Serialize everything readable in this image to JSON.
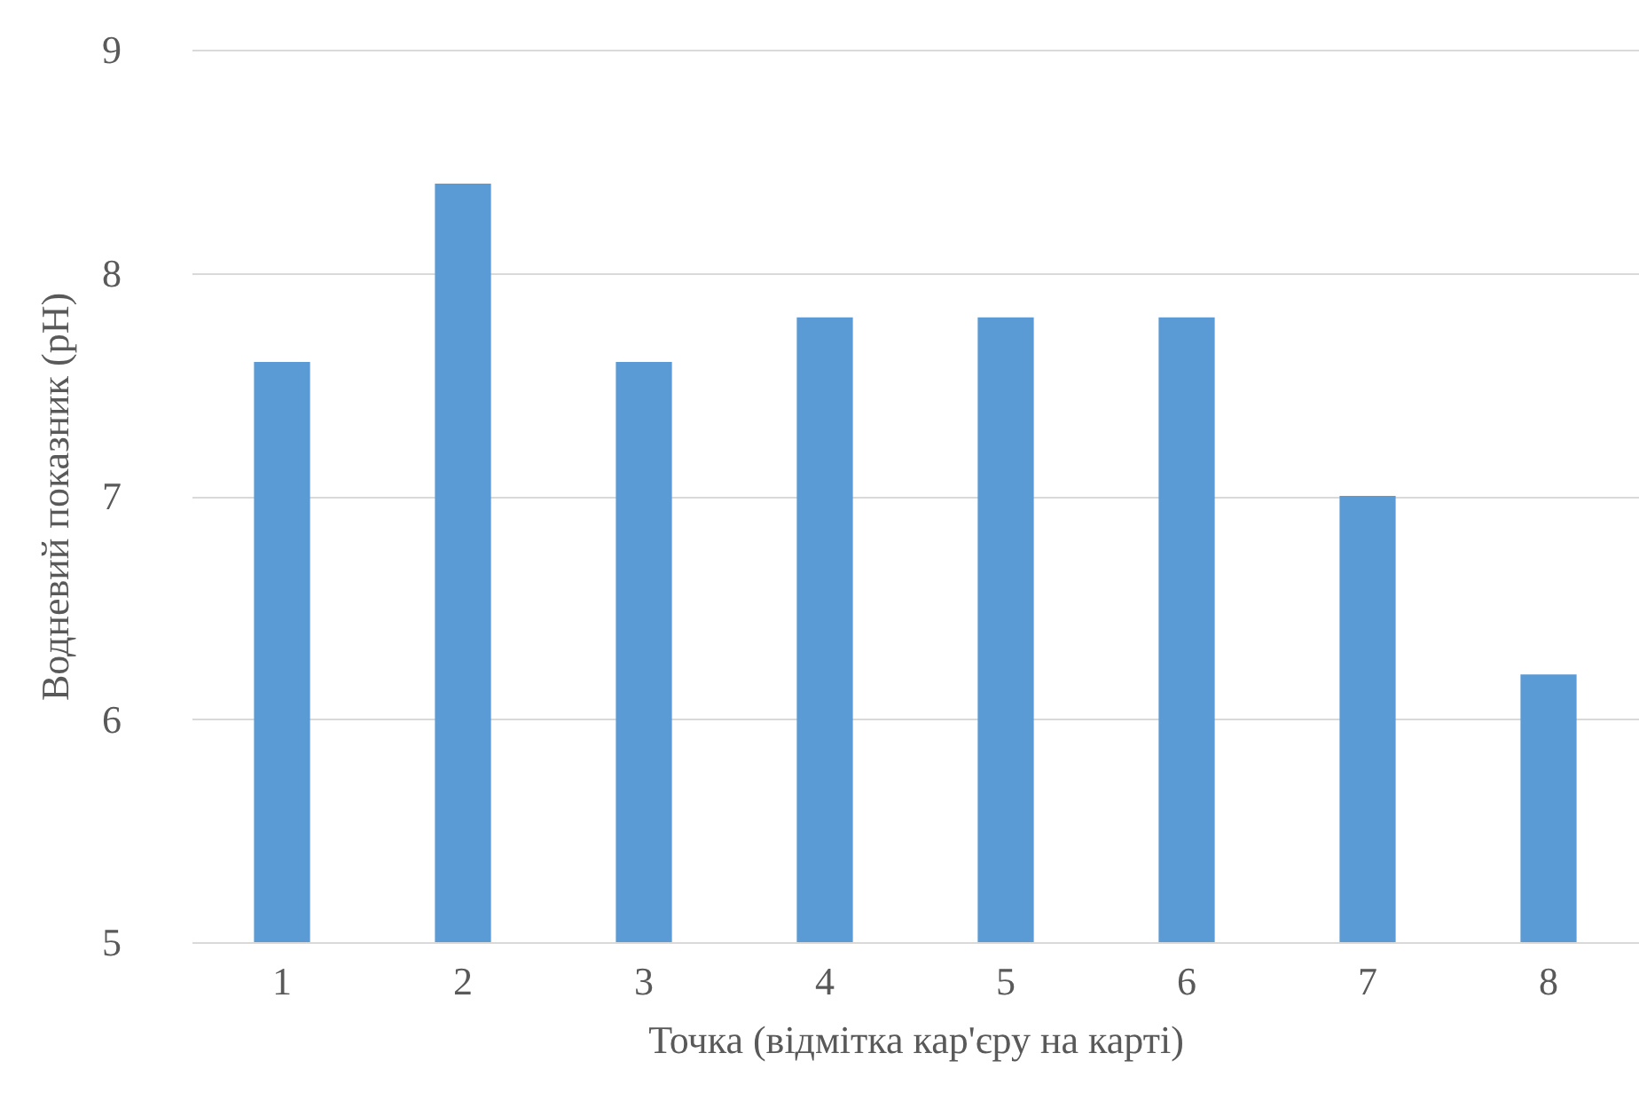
{
  "chart_data": {
    "type": "bar",
    "xlabel": "Точка (відмітка кар'єру на карті)",
    "ylabel": "Водневий показник (pH)",
    "categories": [
      "1",
      "2",
      "3",
      "4",
      "5",
      "6",
      "7",
      "8"
    ],
    "values": [
      7.6,
      8.4,
      7.6,
      7.8,
      7.8,
      7.8,
      7.0,
      6.2
    ],
    "color": "#5b9bd5",
    "ylim": [
      5,
      9
    ],
    "yticks": [
      5,
      6,
      7,
      8,
      9
    ],
    "grid": "y"
  }
}
